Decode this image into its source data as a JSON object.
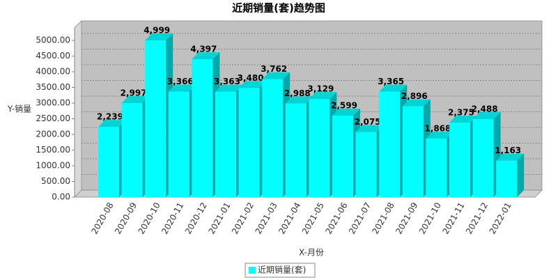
{
  "chart_data": {
    "type": "bar3d",
    "title": "近期销量(套)趋势图",
    "x_label": "X-月份",
    "y_label": "Y-销量",
    "categories": [
      "2020-08",
      "2020-09",
      "2020-10",
      "2020-11",
      "2020-12",
      "2021-01",
      "2021-02",
      "2021-03",
      "2021-04",
      "2021-05",
      "2021-06",
      "2021-07",
      "2021-08",
      "2021-09",
      "2021-10",
      "2021-11",
      "2021-12",
      "2022-01"
    ],
    "series": [
      {
        "name": "近期销量(套)",
        "color": "#00ffff",
        "values": [
          2239,
          2997,
          4999,
          3366,
          4397,
          3363,
          3480,
          3762,
          2988,
          3129,
          2599,
          2075,
          3365,
          2896,
          1868,
          2375,
          2488,
          1163
        ],
        "value_labels": [
          "2,239",
          "2,997",
          "4,999",
          "3,366",
          "4,397",
          "3,363",
          "3,480",
          "3,762",
          "2,988",
          "3,129",
          "2,599",
          "2,075",
          "3,365",
          "2,896",
          "1,868",
          "2,375",
          "2,488",
          "1,163"
        ]
      }
    ],
    "ylim": [
      0,
      5400
    ],
    "yticks": [
      {
        "value": 0,
        "label": "0.00"
      },
      {
        "value": 500,
        "label": "500.00"
      },
      {
        "value": 1000,
        "label": "1000.00"
      },
      {
        "value": 1500,
        "label": "1500.00"
      },
      {
        "value": 2000,
        "label": "2000.00"
      },
      {
        "value": 2500,
        "label": "2500.00"
      },
      {
        "value": 3000,
        "label": "3000.00"
      },
      {
        "value": 3500,
        "label": "3500.00"
      },
      {
        "value": 4000,
        "label": "4000.00"
      },
      {
        "value": 4500,
        "label": "4500.00"
      },
      {
        "value": 5000,
        "label": "5000.00"
      }
    ],
    "grid": true
  }
}
